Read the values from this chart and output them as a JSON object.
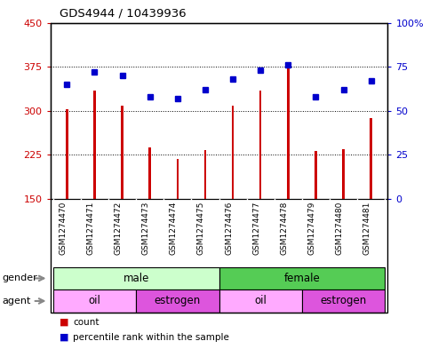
{
  "title": "GDS4944 / 10439936",
  "samples": [
    "GSM1274470",
    "GSM1274471",
    "GSM1274472",
    "GSM1274473",
    "GSM1274474",
    "GSM1274475",
    "GSM1274476",
    "GSM1274477",
    "GSM1274478",
    "GSM1274479",
    "GSM1274480",
    "GSM1274481"
  ],
  "counts": [
    303,
    335,
    308,
    238,
    218,
    233,
    308,
    335,
    383,
    232,
    235,
    288
  ],
  "percentiles": [
    65,
    72,
    70,
    58,
    57,
    62,
    68,
    73,
    76,
    58,
    62,
    67
  ],
  "bar_color": "#cc0000",
  "dot_color": "#0000cc",
  "ylim_left": [
    150,
    450
  ],
  "ylim_right": [
    0,
    100
  ],
  "yticks_left": [
    150,
    225,
    300,
    375,
    450
  ],
  "yticks_right": [
    0,
    25,
    50,
    75,
    100
  ],
  "gender_groups": [
    {
      "label": "male",
      "start": 0,
      "end": 6,
      "color": "#ccffcc"
    },
    {
      "label": "female",
      "start": 6,
      "end": 12,
      "color": "#55cc55"
    }
  ],
  "agent_groups": [
    {
      "label": "oil",
      "start": 0,
      "end": 3,
      "color": "#ffaaff"
    },
    {
      "label": "estrogen",
      "start": 3,
      "end": 6,
      "color": "#dd55dd"
    },
    {
      "label": "oil",
      "start": 6,
      "end": 9,
      "color": "#ffaaff"
    },
    {
      "label": "estrogen",
      "start": 9,
      "end": 12,
      "color": "#dd55dd"
    }
  ],
  "legend_items": [
    {
      "label": "count",
      "color": "#cc0000"
    },
    {
      "label": "percentile rank within the sample",
      "color": "#0000cc"
    }
  ],
  "background_color": "#ffffff",
  "xlabel_bg_color": "#cccccc",
  "grid_color": "#000000",
  "tick_label_color_left": "#cc0000",
  "tick_label_color_right": "#0000cc",
  "bar_width": 0.08
}
